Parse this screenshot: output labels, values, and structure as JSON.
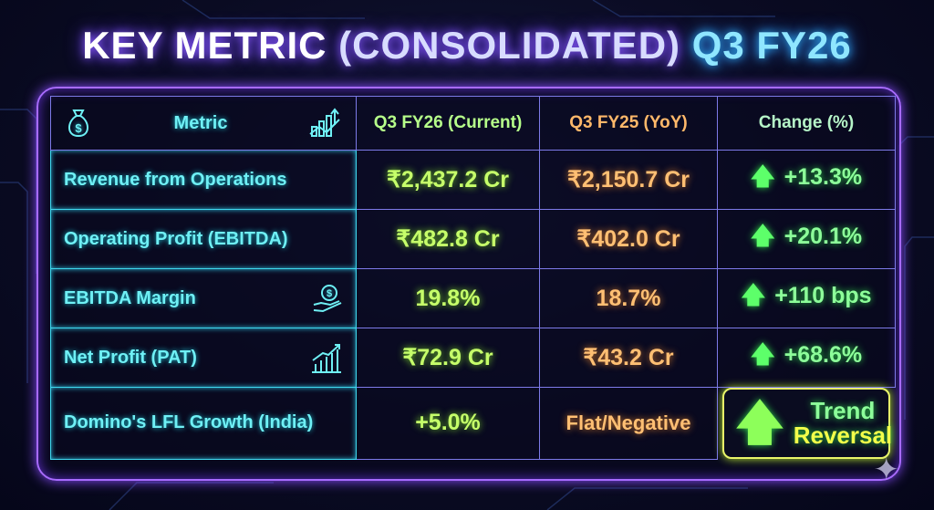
{
  "title": {
    "part1": "KEY METRIC",
    "part2": "(CONSOLIDATED)",
    "part3": "Q3 FY26"
  },
  "table": {
    "headers": [
      "Metric",
      "Q3 FY26 (Current)",
      "Q3 FY25 (YoY)",
      "Change (%)"
    ],
    "rows": [
      {
        "metric": "Revenue from Operations",
        "current": "₹2,437.2 Cr",
        "yoy": "₹2,150.7 Cr",
        "change": "+13.3%"
      },
      {
        "metric": "Operating Profit (EBITDA)",
        "current": "₹482.8 Cr",
        "yoy": "₹402.0 Cr",
        "change": "+20.1%"
      },
      {
        "metric": "EBITDA Margin",
        "current": "19.8%",
        "yoy": "18.7%",
        "change": "+110 bps"
      },
      {
        "metric": "Net Profit (PAT)",
        "current": "₹72.9 Cr",
        "yoy": "₹43.2 Cr",
        "change": "+68.6%"
      },
      {
        "metric": "Domino's LFL Growth (India)",
        "current": "+5.0%",
        "yoy": "Flat/Negative",
        "change_line1": "Trend",
        "change_line2": "Reversal"
      }
    ]
  },
  "icons": {
    "header_left": "money-bag-icon",
    "header_right": "growth-chart-icon",
    "margin": "hand-money-icon",
    "pat": "bar-chart-up-icon",
    "change": "up-arrow-icon"
  },
  "colors": {
    "accent_cyan": "#6ff0f5",
    "current_green": "#c6ff6a",
    "yoy_orange": "#ffbf73",
    "change_green": "#8dff9a",
    "frame_purple": "#a86bff"
  }
}
